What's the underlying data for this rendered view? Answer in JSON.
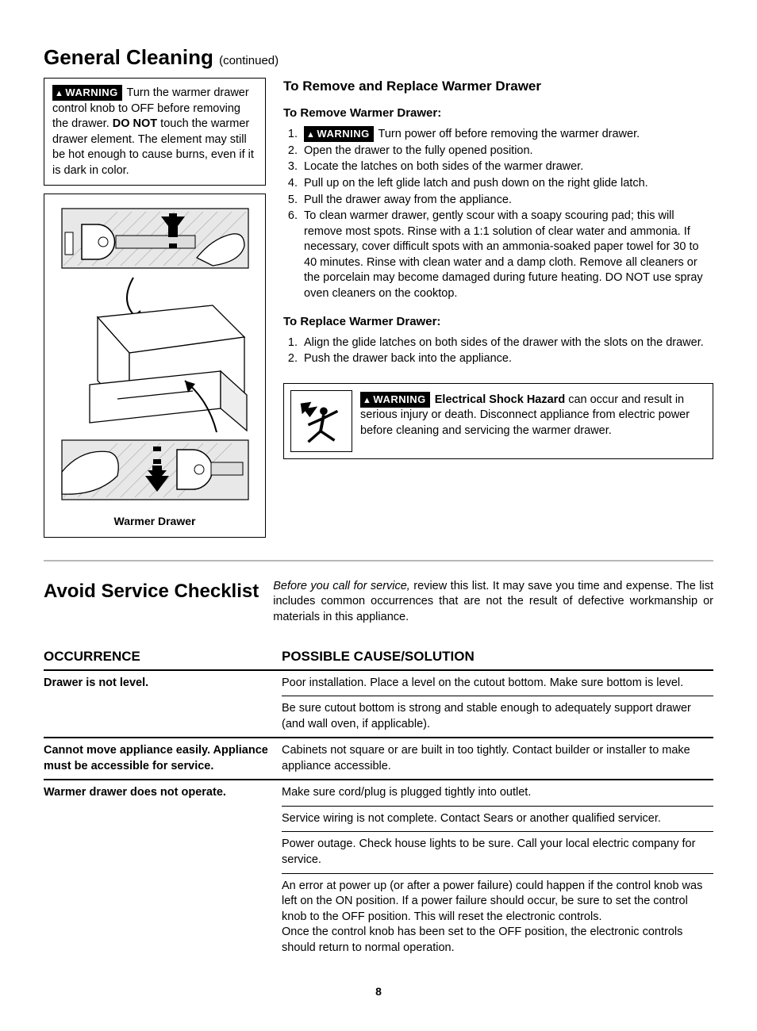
{
  "page_title": "General Cleaning",
  "page_title_suffix": "(continued)",
  "left_warning": {
    "badge": "WARNING",
    "text": "Turn the warmer drawer control knob to OFF before removing the drawer. DO NOT touch the warmer drawer element. The element may still be hot enough to cause burns, even if it is dark in color.",
    "bold_span": "DO NOT"
  },
  "figure_caption": "Warmer Drawer",
  "remove_replace": {
    "heading": "To Remove and Replace Warmer Drawer",
    "remove_heading": "To Remove Warmer Drawer:",
    "remove_steps": [
      {
        "badge": "WARNING",
        "badge_text": "Turn power off before removing the warmer drawer."
      },
      {
        "text": "Open the drawer to the fully opened position."
      },
      {
        "text": "Locate the latches on both sides of the warmer drawer."
      },
      {
        "text": "Pull up on the left glide latch and push down on the right glide latch."
      },
      {
        "text": "Pull the drawer away from the appliance."
      },
      {
        "text": "To clean warmer drawer, gently scour with a soapy scouring pad; this will remove most spots. Rinse with a 1:1 solution of clear water and ammonia. If necessary, cover difficult spots with an ammonia-soaked paper towel for 30 to 40 minutes. Rinse with clean water and a damp cloth. Remove all cleaners or the porcelain may become damaged during future heating. DO NOT use spray oven cleaners on the cooktop."
      }
    ],
    "replace_heading": "To Replace Warmer Drawer:",
    "replace_steps": [
      "Align the glide latches on both sides of the drawer with the slots on the drawer.",
      "Push the drawer back into the appliance."
    ]
  },
  "hazard": {
    "badge": "WARNING",
    "bold": "Electrical Shock Hazard",
    "text": " can occur and result in serious injury or death. Disconnect appliance from electric power before cleaning and servicing the warmer drawer."
  },
  "checklist": {
    "heading": "Avoid Service Checklist",
    "intro_italic": "Before you call for service,",
    "intro_rest": " review this list. It may save you time and expense. The list includes common occurrences that are not the result of defective workmanship or materials in this appliance.",
    "col_occurrence": "OCCURRENCE",
    "col_solution": "POSSIBLE  CAUSE/SOLUTION",
    "rows": [
      {
        "occurrence": "Drawer is not level.",
        "solutions": [
          "Poor installation. Place a level on the cutout bottom. Make sure bottom is level.",
          "Be sure cutout bottom is strong and stable enough to adequately support drawer (and wall oven, if applicable)."
        ]
      },
      {
        "occurrence": "Cannot move appliance easily. Appliance must be accessible for service.",
        "solutions": [
          "Cabinets not square or are built in too tightly. Contact builder or installer to make appliance accessible."
        ]
      },
      {
        "occurrence": "Warmer drawer does not operate.",
        "solutions": [
          "Make sure cord/plug is plugged tightly into outlet.",
          "Service wiring is not complete. Contact Sears or another qualified servicer.",
          "Power outage. Check house lights to be sure. Call your local electric company for service.",
          "An error at power up (or after a power failure) could happen if the control knob was left on the ON position. If a power failure should occur, be sure to set the control knob to the OFF position. This will reset the electronic controls.\nOnce the control knob has been set to the OFF position, the electronic controls should return to normal operation."
        ]
      }
    ]
  },
  "page_number": "8",
  "colors": {
    "text": "#000000",
    "divider": "#b8b8b8",
    "border": "#000000"
  }
}
